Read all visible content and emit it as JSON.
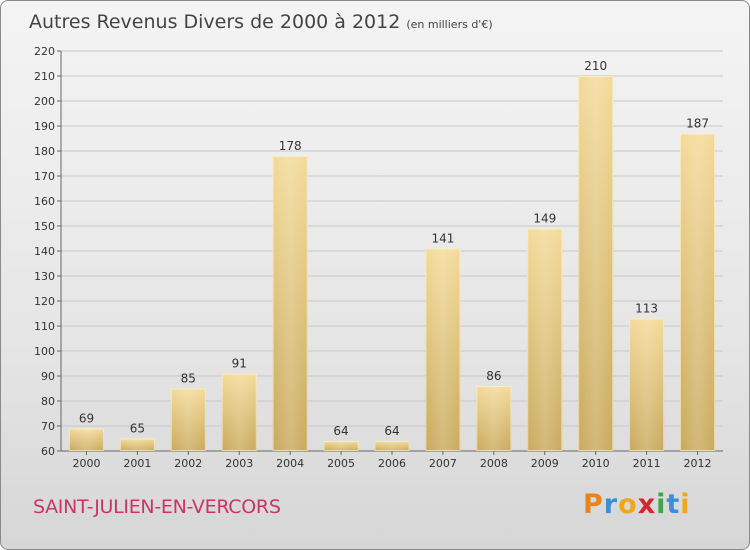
{
  "title": "Autres Revenus Divers de 2000 à 2012",
  "subtitle": "(en milliers d'€)",
  "commune": "SAINT-JULIEN-EN-VERCORS",
  "brand": {
    "letters": [
      "P",
      "r",
      "o",
      "x",
      "i",
      "t",
      "i"
    ],
    "colors": [
      "#e8841a",
      "#3a8fd8",
      "#f0a818",
      "#d8242c",
      "#3aa84a",
      "#3a8fd8",
      "#f0a818"
    ]
  },
  "chart_data": {
    "type": "bar",
    "categories": [
      "2000",
      "2001",
      "2002",
      "2003",
      "2004",
      "2005",
      "2006",
      "2007",
      "2008",
      "2009",
      "2010",
      "2011",
      "2012"
    ],
    "values": [
      69,
      65,
      85,
      91,
      178,
      64,
      64,
      141,
      86,
      149,
      210,
      113,
      187
    ],
    "ylim": [
      60,
      220
    ],
    "yticks": [
      60,
      70,
      80,
      90,
      100,
      110,
      120,
      130,
      140,
      150,
      160,
      170,
      180,
      190,
      200,
      210,
      220
    ],
    "grid": true,
    "bar_color": "#e3c27a"
  }
}
